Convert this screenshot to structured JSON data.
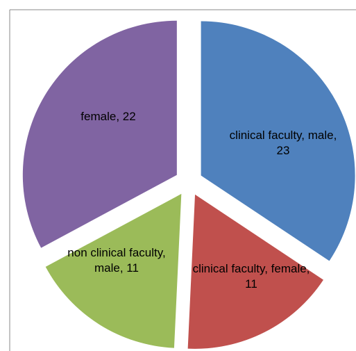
{
  "chart_data": {
    "type": "pie",
    "values": [
      23,
      11,
      11,
      22
    ],
    "value_labels": [
      "clinical faculty, male, 23",
      "clinical faculty, female, 11",
      "non clinical faculty, male, 11",
      "female, 22"
    ],
    "colors": [
      "#4f81bd",
      "#c0504d",
      "#9bbb59",
      "#8064a2"
    ]
  }
}
